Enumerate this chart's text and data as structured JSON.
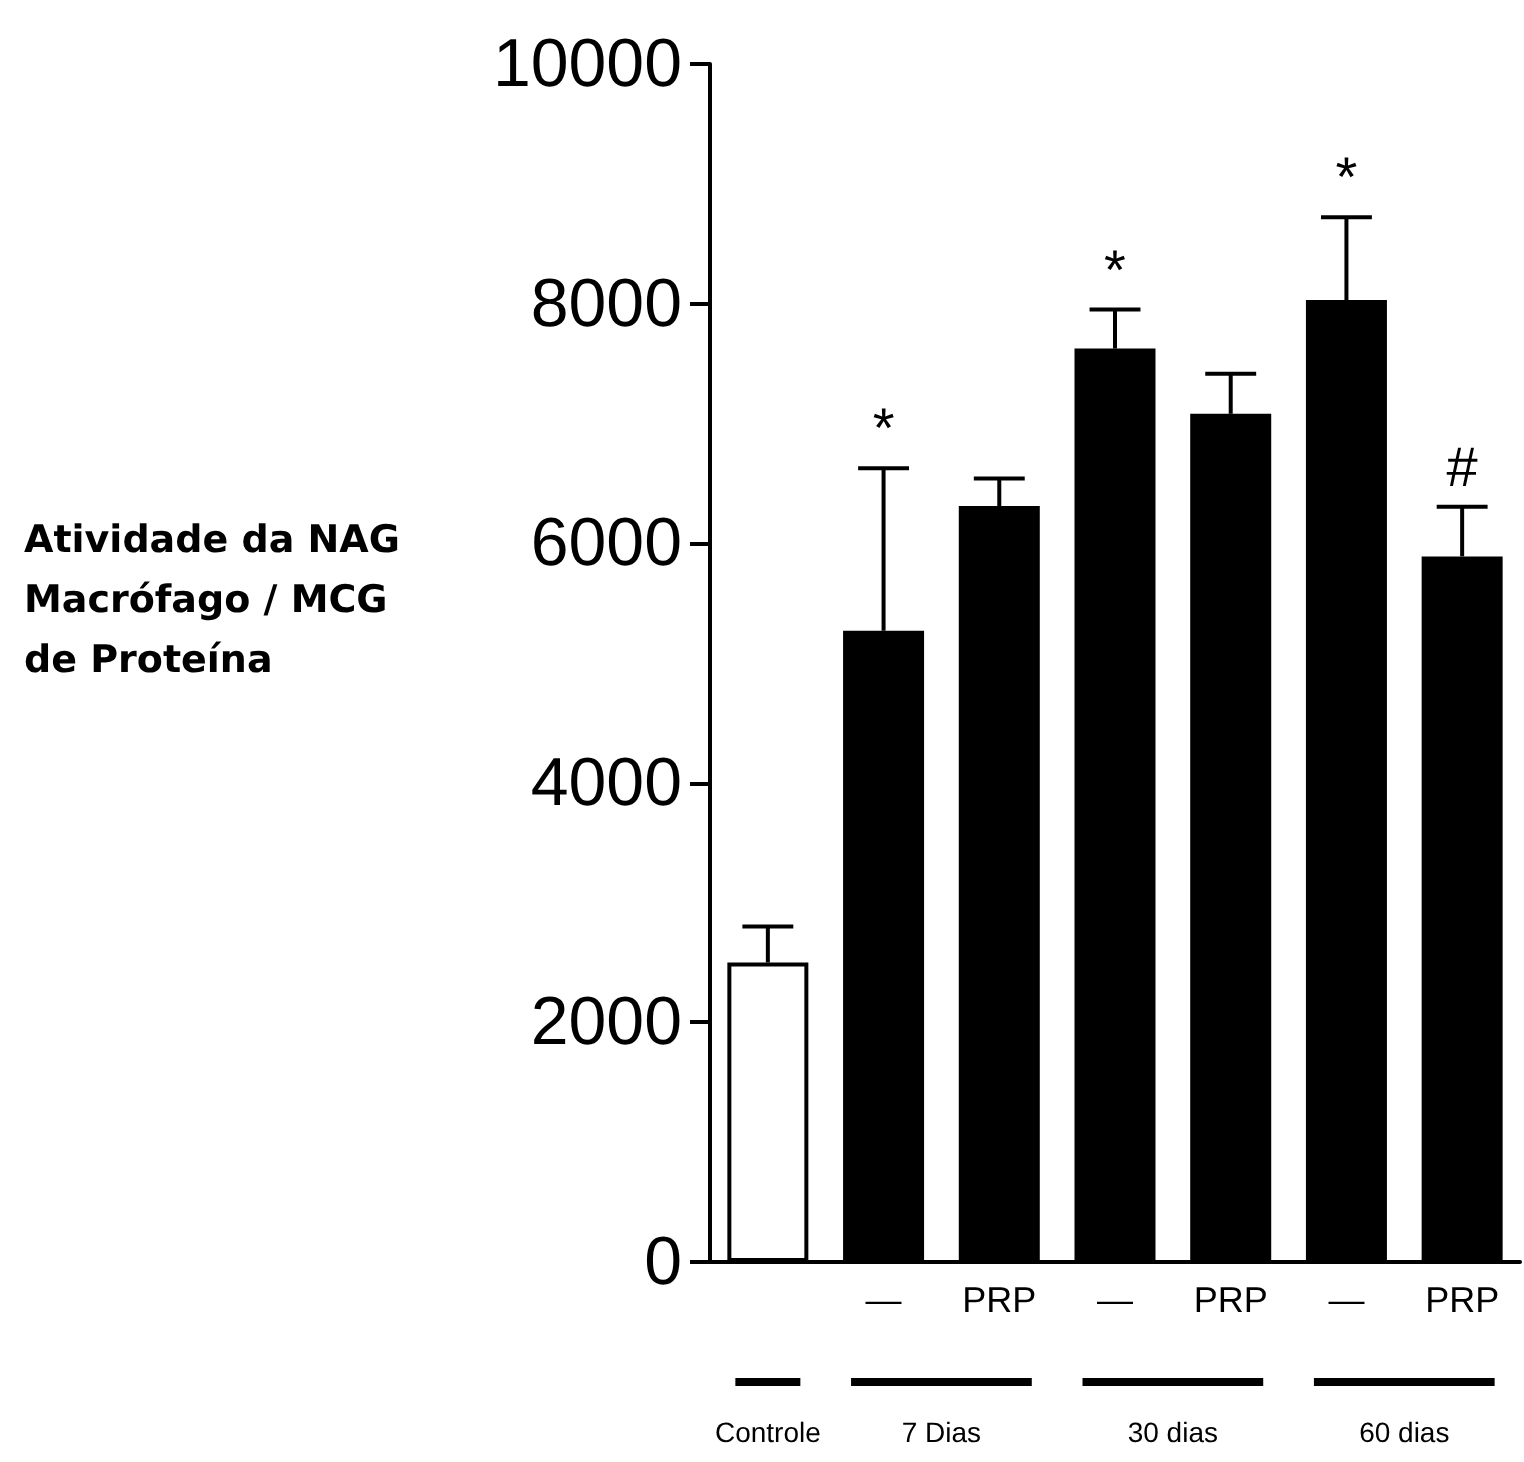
{
  "chart_data": {
    "type": "bar",
    "ylabel": "Atividade da NAG Macrófago / MCG de Proteína",
    "categories": [
      null,
      "—",
      "PRP",
      "—",
      "PRP",
      "—",
      "PRP"
    ],
    "values": [
      2500,
      5270,
      6310,
      7625,
      7080,
      8030,
      5890
    ],
    "errors": [
      [
        2500,
        2800
      ],
      [
        5270,
        6625
      ],
      [
        6310,
        6540
      ],
      [
        7625,
        7950
      ],
      [
        7080,
        7415
      ],
      [
        8030,
        8720
      ],
      [
        5890,
        6305
      ]
    ],
    "value_labels": [
      null,
      "*",
      null,
      "*",
      null,
      "*",
      "#"
    ],
    "colors": [
      "#ffffff",
      "#000000",
      "#000000",
      "#000000",
      "#000000",
      "#000000",
      "#000000"
    ],
    "annotations": [
      "Controle",
      "7 Dias",
      "30 dias",
      "60 dias"
    ],
    "ylim": [
      0,
      10000
    ],
    "yticks": [
      0,
      2000,
      4000,
      6000,
      8000,
      10000
    ],
    "grid": false
  }
}
